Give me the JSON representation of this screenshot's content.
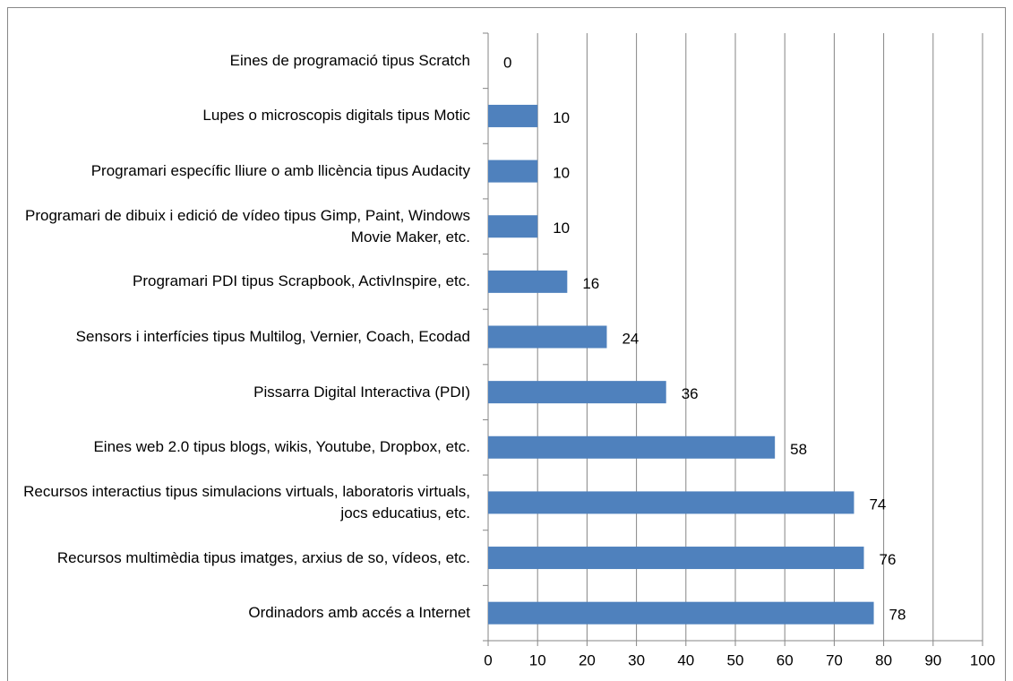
{
  "chart_data": {
    "type": "barh",
    "categories": [
      "Eines de programació tipus Scratch",
      "Lupes o microscopis digitals tipus Motic",
      "Programari específic lliure o amb llicència tipus Audacity",
      "Programari de dibuix i edició de vídeo tipus Gimp, Paint, Windows Movie Maker, etc.",
      "Programari PDI tipus Scrapbook, ActivInspire, etc.",
      "Sensors i interfícies tipus Multilog, Vernier, Coach, Ecodad",
      "Pissarra Digital Interactiva (PDI)",
      "Eines web 2.0 tipus blogs, wikis, Youtube, Dropbox, etc.",
      "Recursos interactius tipus simulacions virtuals, laboratoris virtuals, jocs educatius, etc.",
      "Recursos multimèdia tipus imatges, arxius de so, vídeos, etc.",
      "Ordinadors amb accés a Internet"
    ],
    "values": [
      0,
      10,
      10,
      10,
      16,
      24,
      36,
      58,
      74,
      76,
      78
    ],
    "color": "#4f81bd",
    "xlim": [
      0,
      100
    ],
    "xticks": [
      0,
      10,
      20,
      30,
      40,
      50,
      60,
      70,
      80,
      90,
      100
    ],
    "grid": true
  }
}
